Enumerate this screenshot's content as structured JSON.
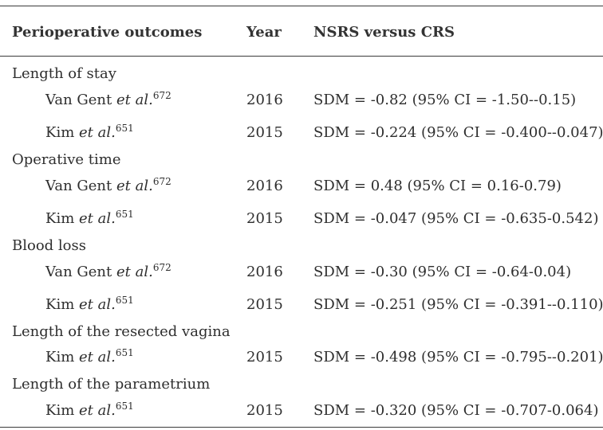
{
  "headers": {
    "outcome": "Perioperative outcomes",
    "year": "Year",
    "comparison": "NSRS versus CRS"
  },
  "groups": [
    {
      "label": "Length of stay",
      "rows": [
        {
          "author": "Van Gent",
          "etal": "et al.",
          "ref": "672",
          "year": "2016",
          "result": "SDM = -0.82 (95% CI = -1.50--0.15)"
        },
        {
          "author": "Kim",
          "etal": "et al.",
          "ref": "651",
          "year": "2015",
          "result": "SDM = -0.224 (95% CI = -0.400--0.047)"
        }
      ]
    },
    {
      "label": "Operative time",
      "rows": [
        {
          "author": "Van Gent",
          "etal": "et al.",
          "ref": "672",
          "year": "2016",
          "result": "SDM = 0.48 (95% CI = 0.16-0.79)"
        },
        {
          "author": "Kim",
          "etal": "et al.",
          "ref": "651",
          "year": "2015",
          "result": "SDM = -0.047 (95% CI = -0.635-0.542)"
        }
      ]
    },
    {
      "label": "Blood loss",
      "rows": [
        {
          "author": "Van Gent",
          "etal": "et al.",
          "ref": "672",
          "year": "2016",
          "result": "SDM = -0.30 (95% CI = -0.64-0.04)"
        },
        {
          "author": "Kim",
          "etal": "et al.",
          "ref": "651",
          "year": "2015",
          "result": "SDM = -0.251 (95% CI = -0.391--0.110)"
        }
      ]
    },
    {
      "label": "Length of the resected vagina",
      "rows": [
        {
          "author": "Kim",
          "etal": "et al.",
          "ref": "651",
          "year": "2015",
          "result": "SDM = -0.498 (95% CI = -0.795--0.201)"
        }
      ]
    },
    {
      "label": "Length of the parametrium",
      "rows": [
        {
          "author": "Kim",
          "etal": "et al.",
          "ref": "651",
          "year": "2015",
          "result": "SDM = -0.320 (95% CI = -0.707-0.064)"
        }
      ]
    }
  ]
}
